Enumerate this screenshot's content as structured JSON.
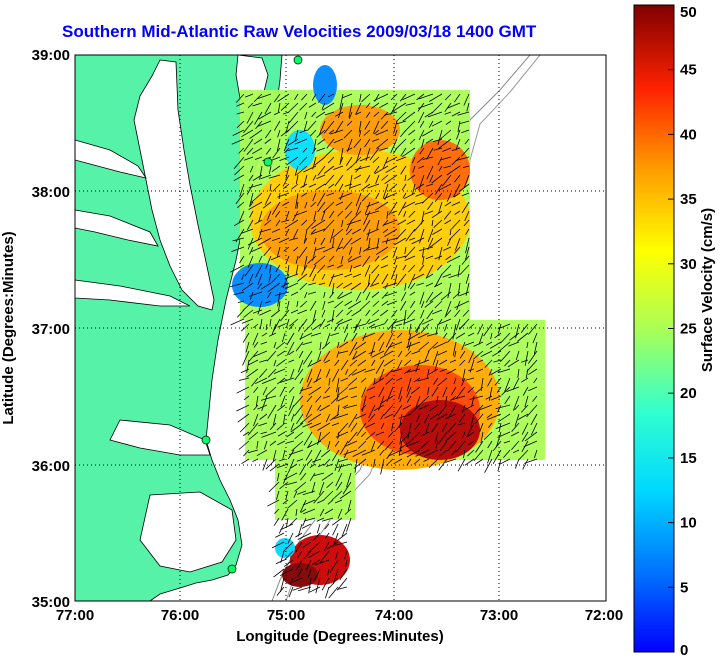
{
  "title": "Southern Mid-Atlantic Raw Velocities 2009/03/18 1400 GMT",
  "map": {
    "x_axis": {
      "label": "Longitude (Degrees:Minutes)",
      "ticks": [
        "77:00",
        "76:00",
        "75:00",
        "74:00",
        "73:00",
        "72:00"
      ]
    },
    "y_axis": {
      "label": "Latitude (Degrees:Minutes)",
      "ticks": [
        "39:00",
        "38:00",
        "37:00",
        "36:00",
        "35:00"
      ]
    },
    "grid": "dotted"
  },
  "colorbar": {
    "label": "Surface Velocity (cm/s)",
    "ticks": [
      "50",
      "45",
      "40",
      "35",
      "30",
      "25",
      "20",
      "15",
      "10",
      "5",
      "0"
    ],
    "min": 0,
    "max": 50,
    "colormap": "jet"
  },
  "colors": {
    "land": "#55f2a8",
    "title": "#0000ff",
    "arrows": "#000000"
  }
}
